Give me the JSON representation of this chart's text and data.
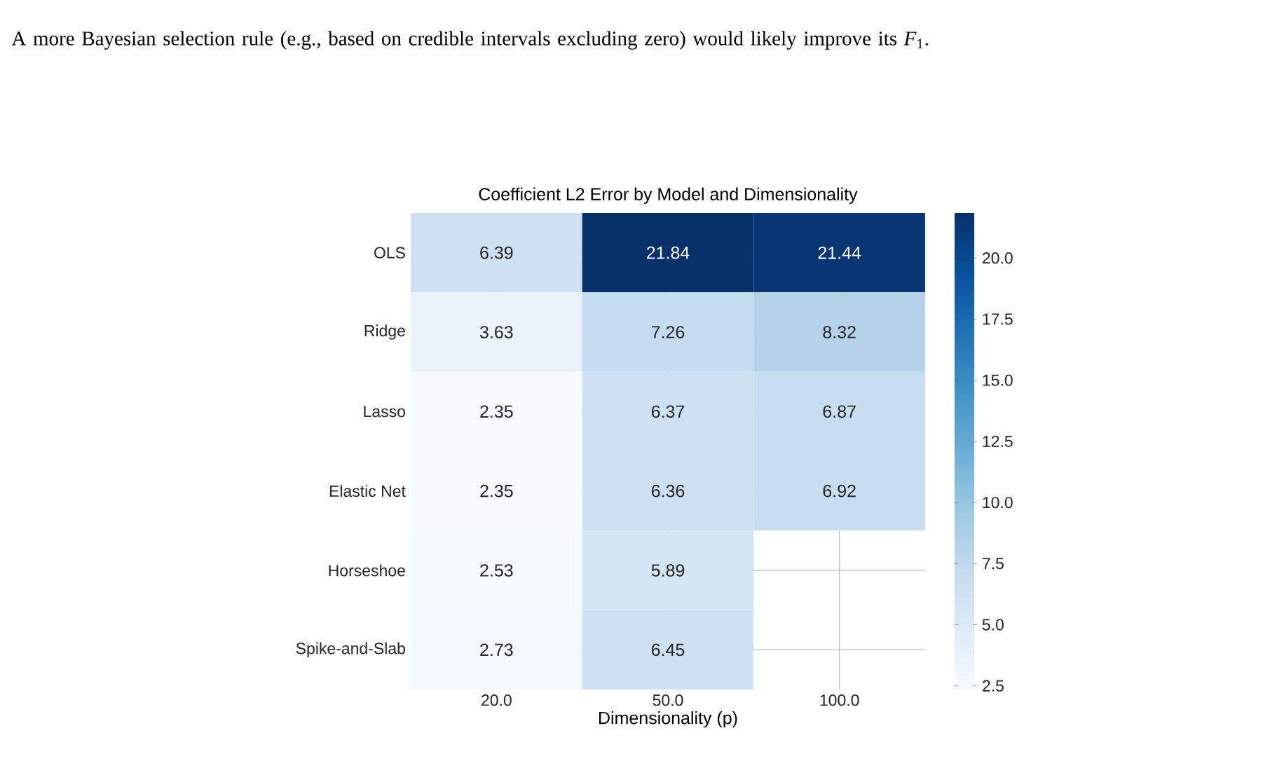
{
  "chart_data": {
    "type": "heatmap",
    "title": "Coefficient L2 Error by Model and Dimensionality",
    "xlabel": "Dimensionality (p)",
    "categories": [
      "20.0",
      "50.0",
      "100.0"
    ],
    "y_categories": [
      "OLS",
      "Ridge",
      "Lasso",
      "Elastic Net",
      "Horseshoe",
      "Spike-and-Slab"
    ],
    "cells": [
      [
        6.39,
        21.84,
        21.44
      ],
      [
        3.63,
        7.26,
        8.32
      ],
      [
        2.35,
        6.37,
        6.87
      ],
      [
        2.35,
        6.36,
        6.92
      ],
      [
        2.53,
        5.89,
        null
      ],
      [
        2.73,
        6.45,
        null
      ]
    ],
    "clim": [
      2.35,
      21.84
    ],
    "cticks": [
      {
        "value": 2.5,
        "label": "2.5"
      },
      {
        "value": 5.0,
        "label": "5.0"
      },
      {
        "value": 7.5,
        "label": "7.5"
      },
      {
        "value": 10.0,
        "label": "10.0"
      },
      {
        "value": 12.5,
        "label": "12.5"
      },
      {
        "value": 15.0,
        "label": "15.0"
      },
      {
        "value": 17.5,
        "label": "17.5"
      },
      {
        "value": 20.0,
        "label": "20.0"
      }
    ],
    "data_labels": true,
    "grid": true,
    "annotations": [
      "A more Bayesian selection rule (e.g., based on credible intervals excluding zero) would likely improve its *F*$_{1}$."
    ]
  }
}
